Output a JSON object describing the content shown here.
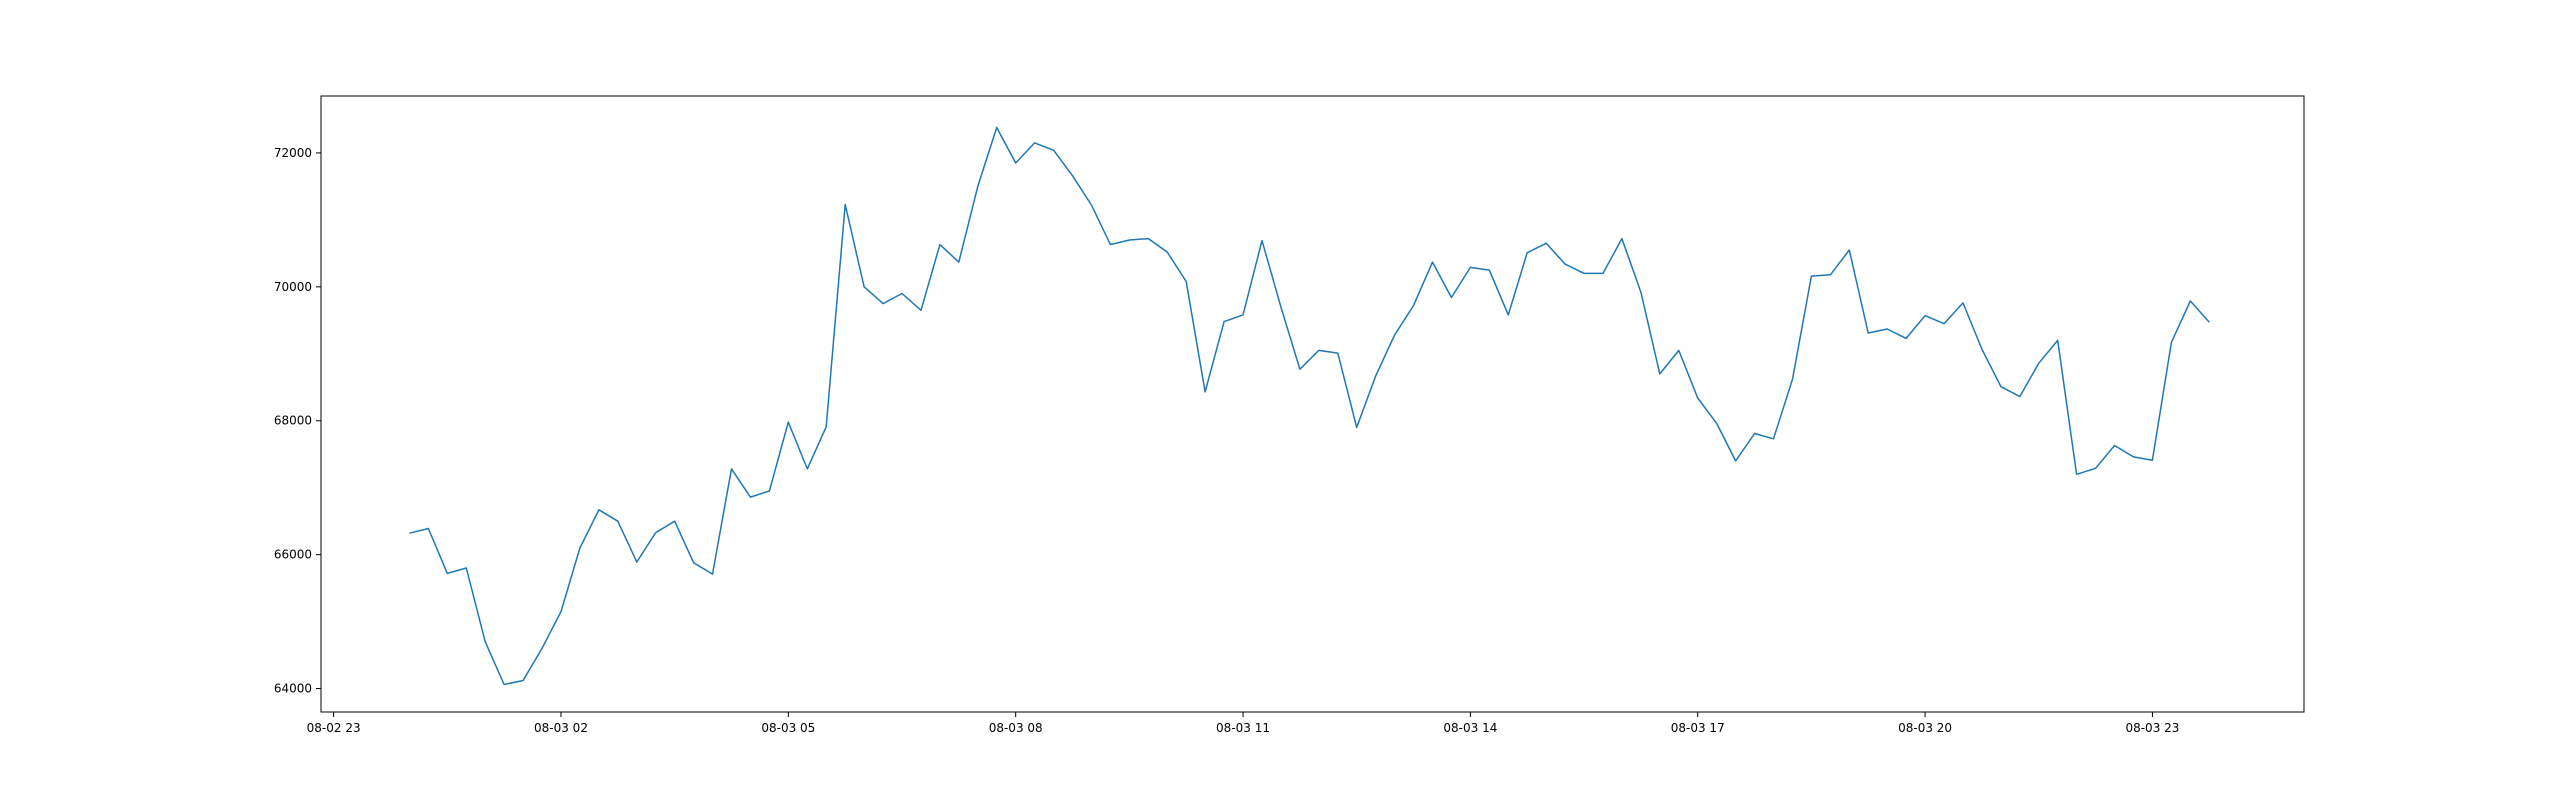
{
  "chart_data": {
    "type": "line",
    "title": "",
    "xlabel": "",
    "ylabel": "",
    "x_ticks": [
      "08-02 23",
      "08-03 02",
      "08-03 05",
      "08-03 08",
      "08-03 11",
      "08-03 14",
      "08-03 17",
      "08-03 20",
      "08-03 23"
    ],
    "y_ticks": [
      "64000",
      "66000",
      "68000",
      "70000",
      "72000"
    ],
    "xlim": [
      "08-02 22:50",
      "08-04 01:00"
    ],
    "ylim": [
      63650,
      72850
    ],
    "grid": false,
    "line_color": "#1f77b4",
    "x": [
      "08-03 00:00",
      "08-03 00:15",
      "08-03 00:30",
      "08-03 00:45",
      "08-03 01:00",
      "08-03 01:15",
      "08-03 01:30",
      "08-03 01:45",
      "08-03 02:00",
      "08-03 02:15",
      "08-03 02:30",
      "08-03 02:45",
      "08-03 03:00",
      "08-03 03:15",
      "08-03 03:30",
      "08-03 03:45",
      "08-03 04:00",
      "08-03 04:15",
      "08-03 04:30",
      "08-03 04:45",
      "08-03 05:00",
      "08-03 05:15",
      "08-03 05:30",
      "08-03 05:45",
      "08-03 06:00",
      "08-03 06:15",
      "08-03 06:30",
      "08-03 06:45",
      "08-03 07:00",
      "08-03 07:15",
      "08-03 07:30",
      "08-03 07:45",
      "08-03 08:00",
      "08-03 08:15",
      "08-03 08:30",
      "08-03 08:45",
      "08-03 09:00",
      "08-03 09:15",
      "08-03 09:30",
      "08-03 09:45",
      "08-03 10:00",
      "08-03 10:15",
      "08-03 10:30",
      "08-03 10:45",
      "08-03 11:00",
      "08-03 11:15",
      "08-03 11:30",
      "08-03 11:45",
      "08-03 12:00",
      "08-03 12:15",
      "08-03 12:30",
      "08-03 12:45",
      "08-03 13:00",
      "08-03 13:15",
      "08-03 13:30",
      "08-03 13:45",
      "08-03 14:00",
      "08-03 14:15",
      "08-03 14:30",
      "08-03 14:45",
      "08-03 15:00",
      "08-03 15:15",
      "08-03 15:30",
      "08-03 15:45",
      "08-03 16:00",
      "08-03 16:15",
      "08-03 16:30",
      "08-03 16:45",
      "08-03 17:00",
      "08-03 17:15",
      "08-03 17:30",
      "08-03 17:45",
      "08-03 18:00",
      "08-03 18:15",
      "08-03 18:30",
      "08-03 18:45",
      "08-03 19:00",
      "08-03 19:15",
      "08-03 19:30",
      "08-03 19:45",
      "08-03 20:00",
      "08-03 20:15",
      "08-03 20:30",
      "08-03 20:45",
      "08-03 21:00",
      "08-03 21:15",
      "08-03 21:30",
      "08-03 21:45",
      "08-03 22:00",
      "08-03 22:15",
      "08-03 22:30",
      "08-03 22:45",
      "08-03 23:00",
      "08-03 23:15",
      "08-03 23:30",
      "08-03 23:45"
    ],
    "values": [
      66320,
      66390,
      65720,
      65800,
      64700,
      64060,
      64120,
      64600,
      65150,
      66100,
      66670,
      66500,
      65890,
      66330,
      66500,
      65880,
      65710,
      67280,
      66860,
      66950,
      67980,
      67280,
      67910,
      71230,
      70000,
      69750,
      69900,
      69650,
      70630,
      70370,
      71500,
      72380,
      71850,
      72150,
      72040,
      71660,
      71220,
      70630,
      70700,
      70720,
      70520,
      70080,
      68430,
      69480,
      69580,
      70690,
      69700,
      68770,
      69050,
      69010,
      67900,
      68670,
      69280,
      69720,
      70370,
      69840,
      70290,
      70250,
      69580,
      70510,
      70650,
      70340,
      70200,
      70200,
      70720,
      69920,
      68700,
      69050,
      68340,
      67960,
      67400,
      67810,
      67730,
      68620,
      70160,
      70180,
      70550,
      69310,
      69370,
      69230,
      69570,
      69450,
      69760,
      69070,
      68510,
      68360,
      68860,
      69200,
      67200,
      67290,
      67630,
      67460,
      67410,
      69170,
      69790,
      69470
    ]
  }
}
